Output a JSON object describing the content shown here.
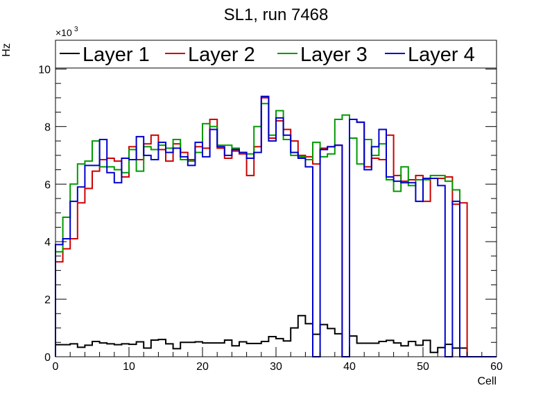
{
  "chart_data": {
    "type": "step",
    "title": "SL1, run 7468",
    "xlabel": "Cell",
    "ylabel": "Hz",
    "y_multiplier_prefix": "×10",
    "y_multiplier_exponent": "3",
    "xlim": [
      0,
      60
    ],
    "ylim": [
      0,
      11
    ],
    "x_ticks": [
      0,
      10,
      20,
      30,
      40,
      50,
      60
    ],
    "y_ticks": [
      0,
      2,
      4,
      6,
      8,
      10
    ],
    "x_tick_labels": [
      "0",
      "10",
      "20",
      "30",
      "40",
      "50",
      "60"
    ],
    "y_tick_labels": [
      "0",
      "2",
      "4",
      "6",
      "8",
      "10"
    ],
    "bin_width": 1,
    "grid": false,
    "legend_position": "top",
    "series": [
      {
        "name": "Layer 1",
        "color": "#000000",
        "values": [
          0.42,
          0.42,
          0.45,
          0.33,
          0.4,
          0.53,
          0.48,
          0.45,
          0.42,
          0.45,
          0.43,
          0.52,
          0.3,
          0.58,
          0.6,
          0.45,
          0.28,
          0.5,
          0.5,
          0.52,
          0.48,
          0.48,
          0.48,
          0.58,
          0.38,
          0.52,
          0.46,
          0.46,
          0.53,
          0.7,
          0.63,
          0.55,
          1.0,
          1.43,
          1.15,
          0.78,
          1.12,
          0.98,
          0.8,
          0.0,
          0.72,
          0.47,
          0.47,
          0.47,
          0.53,
          0.57,
          0.48,
          0.38,
          0.53,
          0.4,
          0.57,
          0.15,
          0.32,
          0.43,
          0.3,
          0.3,
          0.0,
          0.0,
          0.0,
          0.0
        ]
      },
      {
        "name": "Layer 2",
        "color": "#cc0000",
        "values": [
          3.3,
          3.75,
          4.1,
          5.35,
          5.85,
          6.45,
          6.85,
          6.9,
          6.8,
          6.25,
          7.3,
          6.85,
          7.4,
          7.7,
          7.2,
          6.8,
          7.4,
          7.1,
          6.85,
          7.3,
          7.25,
          8.25,
          7.25,
          6.9,
          7.15,
          7.05,
          6.3,
          7.3,
          9.0,
          7.6,
          8.2,
          7.9,
          7.5,
          7.0,
          6.95,
          6.7,
          7.25,
          7.3,
          7.35,
          0.0,
          8.25,
          8.15,
          6.6,
          6.9,
          6.85,
          7.7,
          6.3,
          6.1,
          6.15,
          6.3,
          5.4,
          6.2,
          6.2,
          6.25,
          5.3,
          5.35,
          0.0,
          0.0,
          0.0,
          0.0
        ]
      },
      {
        "name": "Layer 3",
        "color": "#009900",
        "values": [
          3.65,
          4.85,
          6.0,
          6.7,
          6.8,
          7.5,
          6.6,
          6.6,
          6.5,
          6.4,
          7.2,
          6.45,
          7.3,
          7.2,
          7.35,
          7.25,
          7.55,
          6.85,
          6.8,
          7.1,
          8.1,
          8.0,
          7.35,
          7.35,
          7.25,
          7.1,
          7.05,
          8.0,
          8.8,
          7.7,
          8.55,
          7.55,
          7.0,
          6.95,
          6.85,
          7.45,
          6.95,
          7.05,
          8.25,
          8.4,
          7.6,
          6.7,
          7.55,
          7.0,
          7.4,
          6.15,
          5.75,
          6.6,
          5.95,
          6.15,
          6.15,
          6.3,
          6.3,
          6.1,
          5.8,
          0.0,
          0.0,
          0.0,
          0.0,
          0.0
        ]
      },
      {
        "name": "Layer 4",
        "color": "#0000cc",
        "values": [
          3.9,
          4.1,
          5.4,
          5.9,
          6.65,
          6.65,
          7.55,
          6.4,
          6.05,
          6.9,
          6.85,
          7.65,
          7.0,
          6.85,
          7.45,
          7.1,
          7.25,
          6.95,
          6.65,
          7.45,
          6.95,
          7.9,
          7.3,
          7.0,
          7.2,
          7.1,
          6.9,
          7.1,
          9.05,
          7.5,
          8.3,
          7.7,
          7.1,
          6.9,
          6.6,
          0.0,
          7.2,
          7.3,
          7.35,
          0.0,
          8.25,
          8.15,
          6.5,
          7.3,
          7.9,
          6.25,
          6.1,
          6.05,
          6.05,
          5.4,
          6.2,
          6.2,
          5.95,
          0.0,
          5.4,
          0.0,
          0.0,
          0.0,
          0.0,
          0.0
        ]
      }
    ]
  }
}
